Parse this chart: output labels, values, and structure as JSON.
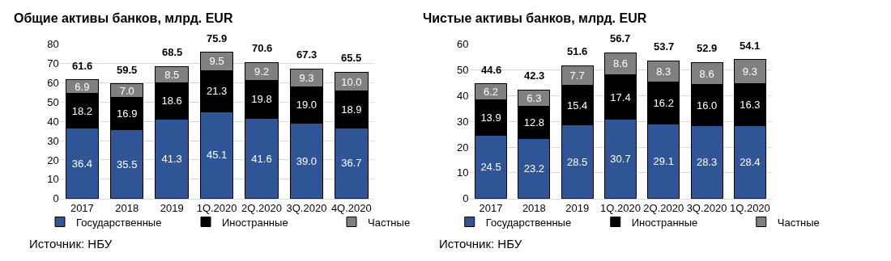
{
  "chart_data": [
    {
      "type": "bar",
      "title": "Общие активы банков, млрд. EUR",
      "stacked": true,
      "grid": "y",
      "legend": "bottom",
      "categories": [
        "2017",
        "2018",
        "2019",
        "1Q.2020",
        "2Q.2020",
        "3Q.2020",
        "4Q.2020"
      ],
      "ylim": [
        0,
        80
      ],
      "yticks": [
        0,
        10,
        20,
        30,
        40,
        50,
        60,
        70,
        80
      ],
      "series": [
        {
          "name": "Государственные",
          "color": "#2f5597",
          "values": [
            36.4,
            35.5,
            41.3,
            45.1,
            41.6,
            39.0,
            36.7
          ],
          "value_labels": [
            "36.4",
            "35.5",
            "41.3",
            "45.1",
            "41.6",
            "39.0",
            "36.7"
          ]
        },
        {
          "name": "Иностранные",
          "color": "#000000",
          "values": [
            18.2,
            16.9,
            18.6,
            21.3,
            19.8,
            19.0,
            18.9
          ],
          "value_labels": [
            "18.2",
            "16.9",
            "18.6",
            "21.3",
            "19.8",
            "19.0",
            "18.9"
          ]
        },
        {
          "name": "Частные",
          "color": "#808080",
          "values": [
            6.9,
            7.0,
            8.5,
            9.5,
            9.2,
            9.3,
            10.0
          ],
          "value_labels": [
            "6.9",
            "7.0",
            "8.5",
            "9.5",
            "9.2",
            "9.3",
            "10.0"
          ]
        }
      ],
      "totals": [
        "61.6",
        "59.5",
        "68.5",
        "75.9",
        "70.6",
        "67.3",
        "65.5"
      ],
      "annotations": [
        "Источник: НБУ"
      ]
    },
    {
      "type": "bar",
      "title": "Чистые активы банков, млрд. EUR",
      "stacked": true,
      "grid": "y",
      "legend": "bottom",
      "categories": [
        "2017",
        "2018",
        "2019",
        "1Q.2020",
        "2Q.2020",
        "3Q.2020",
        "1Q.2020"
      ],
      "ylim": [
        0,
        60
      ],
      "yticks": [
        0,
        10,
        20,
        30,
        40,
        50,
        60
      ],
      "series": [
        {
          "name": "Государственные",
          "color": "#2f5597",
          "values": [
            24.5,
            23.2,
            28.5,
            30.7,
            29.1,
            28.3,
            28.4
          ],
          "value_labels": [
            "24.5",
            "23.2",
            "28.5",
            "30.7",
            "29.1",
            "28.3",
            "28.4"
          ]
        },
        {
          "name": "Иностранные",
          "color": "#000000",
          "values": [
            13.9,
            12.8,
            15.4,
            17.4,
            16.2,
            16.0,
            16.3
          ],
          "value_labels": [
            "13.9",
            "12.8",
            "15.4",
            "17.4",
            "16.2",
            "16.0",
            "16.3"
          ]
        },
        {
          "name": "Частные",
          "color": "#808080",
          "values": [
            6.2,
            6.3,
            7.7,
            8.6,
            8.3,
            8.6,
            9.3
          ],
          "value_labels": [
            "6.2",
            "6.3",
            "7.7",
            "8.6",
            "8.3",
            "8.6",
            "9.3"
          ]
        }
      ],
      "totals": [
        "44.6",
        "42.3",
        "51.6",
        "56.7",
        "53.7",
        "52.9",
        "54.1"
      ],
      "annotations": [
        "Источник: НБУ"
      ]
    }
  ]
}
